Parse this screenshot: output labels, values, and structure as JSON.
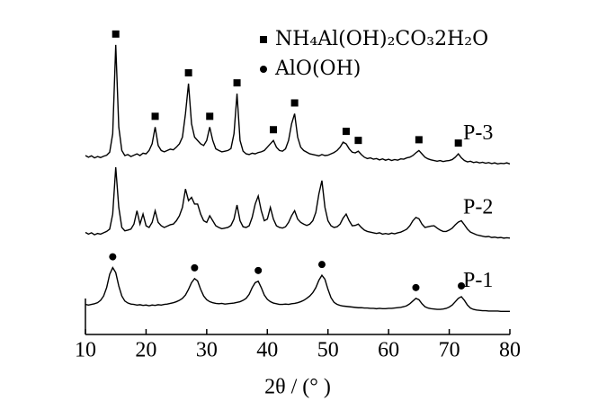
{
  "chart_data": {
    "type": "line",
    "x_label": "2θ / (°  )",
    "xlim": [
      10,
      80
    ],
    "xticks": [
      10,
      20,
      30,
      40,
      50,
      60,
      70,
      80
    ],
    "ylim": [
      0,
      100
    ],
    "x": [
      10,
      10.5,
      11,
      11.5,
      12,
      12.5,
      13,
      13.5,
      14,
      14.5,
      15,
      15.5,
      16,
      16.5,
      17,
      17.5,
      18,
      18.5,
      19,
      19.5,
      20,
      20.5,
      21,
      21.5,
      22,
      22.5,
      23,
      23.5,
      24,
      24.5,
      25,
      25.5,
      26,
      26.5,
      27,
      27.5,
      28,
      28.5,
      29,
      29.5,
      30,
      30.5,
      31,
      31.5,
      32,
      32.5,
      33,
      33.5,
      34,
      34.5,
      35,
      35.5,
      36,
      36.5,
      37,
      37.5,
      38,
      38.5,
      39,
      39.5,
      40,
      40.5,
      41,
      41.5,
      42,
      42.5,
      43,
      43.5,
      44,
      44.5,
      45,
      45.5,
      46,
      46.5,
      47,
      47.5,
      48,
      48.5,
      49,
      49.5,
      50,
      50.5,
      51,
      51.5,
      52,
      52.5,
      53,
      53.5,
      54,
      54.5,
      55,
      55.5,
      56,
      56.5,
      57,
      57.5,
      58,
      58.5,
      59,
      59.5,
      60,
      60.5,
      61,
      61.5,
      62,
      62.5,
      63,
      63.5,
      64,
      64.5,
      65,
      65.5,
      66,
      66.5,
      67,
      67.5,
      68,
      68.5,
      69,
      69.5,
      70,
      70.5,
      71,
      71.5,
      72,
      72.5,
      73,
      73.5,
      74,
      74.5,
      75,
      75.5,
      76,
      76.5,
      77,
      77.5,
      78,
      78.5,
      79,
      79.5,
      80
    ],
    "series": [
      {
        "name": "P-3",
        "color": "#000000",
        "values": [
          53.5,
          53,
          53.4,
          52.8,
          53.2,
          52.9,
          53.3,
          53.6,
          54.5,
          60,
          86.6,
          62,
          55,
          53.5,
          53.8,
          53.2,
          53.6,
          54,
          53.5,
          54.2,
          54,
          55,
          57,
          62,
          56.5,
          55,
          54.6,
          55,
          55.4,
          55.2,
          56,
          57,
          59,
          66,
          75,
          63,
          59,
          58,
          57,
          56.5,
          58,
          62,
          58,
          55.5,
          55,
          54.6,
          54.8,
          55,
          55.6,
          60,
          72,
          58,
          54.8,
          54,
          53.8,
          54.2,
          54,
          54.4,
          54.6,
          55,
          56,
          57,
          58,
          56,
          55,
          54.8,
          55.5,
          58,
          63,
          66,
          59,
          56,
          55,
          54.5,
          54,
          53.8,
          53.6,
          53.4,
          53.8,
          53.5,
          53.6,
          54,
          54.4,
          55,
          56,
          57.5,
          57,
          55.5,
          54.5,
          54.3,
          54.8,
          53.8,
          53,
          52.6,
          52.8,
          52.4,
          52.6,
          52.2,
          52.5,
          52.1,
          52.4,
          52,
          52.3,
          52.1,
          52.5,
          52.4,
          52.8,
          53,
          53.5,
          54.3,
          55,
          54,
          53,
          52.5,
          52.2,
          52,
          51.8,
          52,
          51.7,
          51.9,
          52,
          52.3,
          53,
          54,
          52.8,
          52,
          51.6,
          51.8,
          51.4,
          51.6,
          51.3,
          51.5,
          51.2,
          51.4,
          51.1,
          51.3,
          51,
          51.2,
          51.1,
          51.3,
          51
        ]
      },
      {
        "name": "P-2",
        "color": "#000000",
        "values": [
          30.5,
          30,
          30.4,
          29.8,
          30.2,
          30,
          30.4,
          30.8,
          31.5,
          36,
          50,
          38,
          32,
          31,
          31.2,
          31.5,
          33,
          37,
          33,
          36,
          32.5,
          32,
          33.5,
          37,
          33.5,
          32.5,
          32,
          32.4,
          32.8,
          33,
          34,
          35.5,
          38,
          43.5,
          40,
          41,
          39,
          39,
          36,
          34,
          33.5,
          35.5,
          34,
          32.5,
          32,
          31.6,
          31.8,
          32,
          32.6,
          34.5,
          38.7,
          34,
          32.2,
          32,
          32.5,
          35,
          39,
          41.4,
          37,
          34,
          34.5,
          38,
          34.5,
          32.5,
          32,
          31.8,
          32.2,
          33.5,
          35.5,
          37,
          34.5,
          33.5,
          33,
          32.6,
          33,
          34,
          36.5,
          42,
          46,
          38,
          34,
          32.5,
          32,
          32.2,
          33,
          34.8,
          36,
          34,
          32.5,
          32.6,
          33,
          32,
          31.2,
          30.8,
          30.6,
          30.4,
          30.2,
          30.4,
          30,
          30.2,
          30,
          30.3,
          30.1,
          30.4,
          30.6,
          31,
          31.5,
          32.5,
          34,
          35,
          34.6,
          33,
          32,
          32.2,
          32.4,
          32.5,
          31.8,
          31.2,
          30.8,
          30.8,
          31.2,
          31.8,
          32.8,
          33.6,
          34,
          32.8,
          31.5,
          30.6,
          30.2,
          29.8,
          29.6,
          29.4,
          29.2,
          29.3,
          29,
          29.1,
          28.9,
          29,
          28.8,
          28.9,
          28.8
        ]
      },
      {
        "name": "P-1",
        "color": "#000000",
        "values": [
          9,
          8.8,
          9,
          9.2,
          9.5,
          10.2,
          11.5,
          14,
          18,
          20,
          18.5,
          14.5,
          11.5,
          10,
          9.4,
          9.1,
          9,
          8.8,
          8.9,
          8.7,
          8.8,
          8.6,
          8.8,
          8.7,
          8.9,
          8.8,
          9,
          9.1,
          9.3,
          9.5,
          9.8,
          10.2,
          10.8,
          11.8,
          13.5,
          15.5,
          16.7,
          16,
          13.5,
          11.5,
          10.4,
          9.8,
          9.5,
          9.3,
          9.2,
          9.3,
          9.1,
          9.2,
          9.3,
          9.4,
          9.6,
          9.8,
          10.2,
          10.8,
          12,
          14,
          15.5,
          15.9,
          14,
          11.8,
          10.5,
          9.8,
          9.4,
          9.2,
          9,
          9,
          9.1,
          9,
          9.2,
          9.3,
          9.5,
          9.8,
          10.2,
          10.8,
          11.5,
          12.5,
          14,
          16.2,
          17.7,
          16.5,
          13.5,
          11,
          9.6,
          9,
          8.7,
          8.5,
          8.4,
          8.3,
          8.2,
          8.1,
          8,
          8,
          7.9,
          7.9,
          7.8,
          7.8,
          7.7,
          7.8,
          7.7,
          7.7,
          7.8,
          7.8,
          7.9,
          8,
          8.1,
          8.3,
          8.6,
          9.2,
          10,
          10.8,
          10.4,
          9.2,
          8.3,
          7.9,
          7.7,
          7.6,
          7.5,
          7.5,
          7.6,
          7.8,
          8.2,
          8.8,
          9.8,
          10.8,
          11.3,
          10.2,
          8.8,
          7.9,
          7.5,
          7.3,
          7.2,
          7.1,
          7.1,
          7,
          7,
          7,
          7,
          6.9,
          6.9,
          6.9,
          6.9
        ]
      }
    ],
    "phases": [
      {
        "name": "NH₄Al(OH)₂CO₃2H₂O",
        "marker": "square",
        "peaks": [
          {
            "x": 15,
            "y": 86.6
          },
          {
            "x": 21.5,
            "y": 62
          },
          {
            "x": 27,
            "y": 75
          },
          {
            "x": 30.5,
            "y": 62
          },
          {
            "x": 35,
            "y": 72
          },
          {
            "x": 41,
            "y": 58
          },
          {
            "x": 44.5,
            "y": 66
          },
          {
            "x": 53,
            "y": 57.5
          },
          {
            "x": 55,
            "y": 54.8
          },
          {
            "x": 65,
            "y": 55
          },
          {
            "x": 71.5,
            "y": 54
          }
        ]
      },
      {
        "name": "AlO(OH)",
        "marker": "circle",
        "peaks": [
          {
            "x": 14.5,
            "y": 20
          },
          {
            "x": 28,
            "y": 16.7
          },
          {
            "x": 38.5,
            "y": 15.9
          },
          {
            "x": 49,
            "y": 17.7
          },
          {
            "x": 64.5,
            "y": 10.8
          },
          {
            "x": 72,
            "y": 11.3
          }
        ]
      }
    ]
  }
}
